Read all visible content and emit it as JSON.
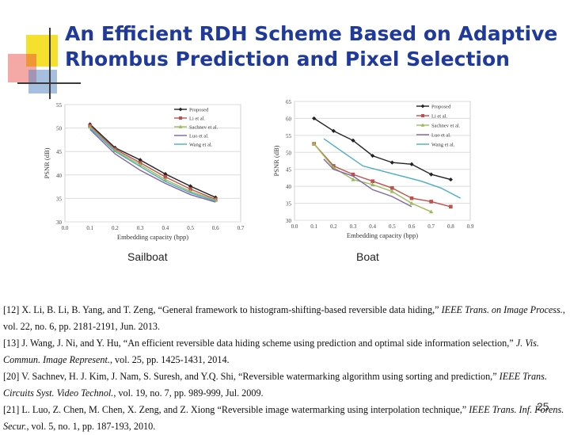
{
  "title_line1": "An Efficient RDH Scheme Based on Adaptive",
  "title_line2": "Rhombus Prediction and Pixel Selection",
  "colors": {
    "title": "#1f3a9a",
    "deco_yellow": "#f5df2f",
    "deco_red": "#e8413c",
    "deco_blue": "#4f7fc0"
  },
  "captions": {
    "left": "Sailboat",
    "right": "Boat"
  },
  "page_number": "25",
  "references": [
    {
      "pre": "[12] X. Li, B. Li, B. Yang, and T. Zeng, “General framework to histogram-shifting-based reversible data hiding,” ",
      "ital": "IEEE Trans. on Image Process.",
      "post": ", vol. 22, no. 6, pp. 2181-2191, Jun. 2013."
    },
    {
      "pre": "[13] J. Wang, J. Ni, and Y. Hu, “An efficient reversible data hiding scheme using prediction and optimal side information selection,” ",
      "ital": "J. Vis. Commun. Image Represent.",
      "post": ", vol. 25, pp. 1425-1431, 2014."
    },
    {
      "pre": "[20] V. Sachnev, H. J. Kim, J. Nam, S. Suresh, and Y.Q. Shi, “Reversible watermarking algorithm using sorting and prediction,” ",
      "ital": "IEEE Trans. Circuits Syst. Video Technol.",
      "post": ", vol. 19, no. 7, pp. 989-999, Jul. 2009."
    },
    {
      "pre": "[21] L. Luo, Z. Chen, M. Chen, X. Zeng, and Z. Xiong “Reversible image watermarking using interpolation technique,” ",
      "ital": "IEEE Trans. Inf. Forens. Secur.",
      "post": ", vol. 5, no. 1, pp. 187-193, 2010."
    }
  ],
  "chart_data": [
    {
      "type": "line",
      "name": "Sailboat",
      "xlabel": "Embedding capacity (bpp)",
      "ylabel": "PSNR (dB)",
      "xlim": [
        0,
        0.7
      ],
      "ylim": [
        30,
        55
      ],
      "xticks": [
        "0.0",
        "0.1",
        "0.2",
        "0.3",
        "0.4",
        "0.5",
        "0.6",
        "0.7"
      ],
      "yticks": [
        "30",
        "35",
        "40",
        "45",
        "50",
        "55"
      ],
      "legend": [
        "Proposed",
        "Li et al.",
        "Sachnev et al.",
        "Luo et al.",
        "Wang et al."
      ],
      "series": [
        {
          "name": "Proposed",
          "color": "#222222",
          "marker": "diamond",
          "x": [
            0.1,
            0.2,
            0.3,
            0.4,
            0.5,
            0.6
          ],
          "y": [
            50.8,
            45.8,
            43.2,
            40.2,
            37.6,
            35.2
          ]
        },
        {
          "name": "Li et al.",
          "color": "#c0504d",
          "marker": "square",
          "x": [
            0.1,
            0.2,
            0.3,
            0.4,
            0.5,
            0.6
          ],
          "y": [
            50.5,
            45.5,
            42.6,
            39.6,
            37.0,
            34.8
          ]
        },
        {
          "name": "Sachnev et al.",
          "color": "#9bbb59",
          "marker": "triangle",
          "x": [
            0.1,
            0.2,
            0.3,
            0.4,
            0.5,
            0.6
          ],
          "y": [
            50.2,
            45.2,
            42.2,
            39.0,
            36.5,
            34.6
          ]
        },
        {
          "name": "Luo et al.",
          "color": "#8064a2",
          "marker": "none",
          "x": [
            0.1,
            0.2,
            0.3,
            0.4,
            0.5,
            0.6
          ],
          "y": [
            49.7,
            44.5,
            41.0,
            38.2,
            35.8,
            34.2
          ]
        },
        {
          "name": "Wang et al.",
          "color": "#4bacc6",
          "marker": "none",
          "x": [
            0.1,
            0.2,
            0.3,
            0.4,
            0.5,
            0.6
          ],
          "y": [
            50.0,
            45.0,
            41.8,
            38.6,
            36.2,
            34.4
          ]
        }
      ]
    },
    {
      "type": "line",
      "name": "Boat",
      "xlabel": "Embedding capacity (bpp)",
      "ylabel": "PSNR (dB)",
      "xlim": [
        0,
        0.9
      ],
      "ylim": [
        30,
        65
      ],
      "xticks": [
        "0.0",
        "0.1",
        "0.2",
        "0.3",
        "0.4",
        "0.5",
        "0.6",
        "0.7",
        "0.8",
        "0.9"
      ],
      "yticks": [
        "30",
        "35",
        "40",
        "45",
        "50",
        "55",
        "60",
        "65"
      ],
      "legend": [
        "Proposed",
        "Li et al.",
        "Sachnev et al.",
        "Luo et al.",
        "Wang et al."
      ],
      "series": [
        {
          "name": "Proposed",
          "color": "#222222",
          "marker": "diamond",
          "x": [
            0.1,
            0.2,
            0.3,
            0.4,
            0.5,
            0.6,
            0.7,
            0.8
          ],
          "y": [
            60.0,
            56.3,
            53.5,
            49.0,
            47.0,
            46.5,
            43.5,
            42.0
          ]
        },
        {
          "name": "Li et al.",
          "color": "#c0504d",
          "marker": "square",
          "x": [
            0.1,
            0.2,
            0.3,
            0.4,
            0.5,
            0.6,
            0.7,
            0.8
          ],
          "y": [
            52.5,
            46.0,
            43.5,
            41.5,
            39.5,
            36.5,
            35.5,
            34.0
          ]
        },
        {
          "name": "Sachnev et al.",
          "color": "#9bbb59",
          "marker": "triangle",
          "x": [
            0.1,
            0.2,
            0.3,
            0.4,
            0.5,
            0.6,
            0.7
          ],
          "y": [
            52.5,
            45.5,
            42.0,
            40.5,
            38.5,
            35.0,
            32.5
          ]
        },
        {
          "name": "Luo et al.",
          "color": "#8064a2",
          "marker": "none",
          "x": [
            0.15,
            0.2,
            0.3,
            0.4,
            0.5,
            0.6
          ],
          "y": [
            48.0,
            45.0,
            43.0,
            39.0,
            37.0,
            34.0
          ]
        },
        {
          "name": "Wang et al.",
          "color": "#4bacc6",
          "marker": "none",
          "x": [
            0.15,
            0.25,
            0.35,
            0.45,
            0.55,
            0.65,
            0.75,
            0.85
          ],
          "y": [
            54.0,
            50.0,
            46.0,
            44.5,
            43.0,
            41.5,
            39.5,
            36.5
          ]
        }
      ]
    }
  ]
}
